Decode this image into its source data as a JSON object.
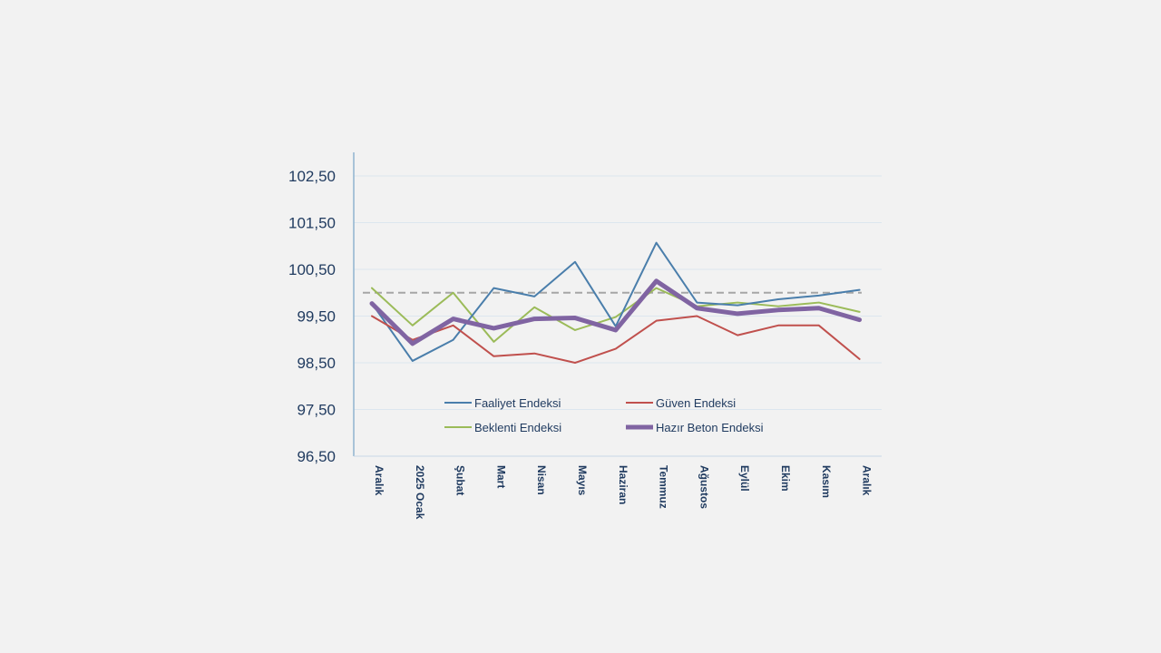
{
  "chart_data": {
    "type": "line",
    "title": "",
    "xlabel": "",
    "ylabel": "",
    "ylim": [
      96.5,
      102.5
    ],
    "yticks": [
      "96,50",
      "97,50",
      "98,50",
      "99,50",
      "100,50",
      "101,50",
      "102,50"
    ],
    "ytick_values": [
      96.5,
      97.5,
      98.5,
      99.5,
      100.5,
      101.5,
      102.5
    ],
    "categories": [
      "Aralık",
      "2025 Ocak",
      "Şubat",
      "Mart",
      "Nisan",
      "Mayıs",
      "Haziran",
      "Temmuz",
      "Ağustos",
      "Eylül",
      "Ekim",
      "Kasım",
      "Aralık"
    ],
    "grid": true,
    "legend_position": "bottom-inside",
    "reference_line": {
      "value": 100,
      "style": "dashed",
      "color": "#a6a6a6"
    },
    "series": [
      {
        "name": "Faaliyet Endeksi",
        "color": "#4a7eab",
        "width": 2,
        "values": [
          99.77,
          98.54,
          98.99,
          100.1,
          99.92,
          100.66,
          99.28,
          101.07,
          99.79,
          99.73,
          99.86,
          99.94,
          100.06
        ]
      },
      {
        "name": "Güven Endeksi",
        "color": "#c0504d",
        "width": 2,
        "values": [
          99.5,
          98.99,
          99.3,
          98.64,
          98.7,
          98.5,
          98.8,
          99.4,
          99.5,
          99.09,
          99.3,
          99.3,
          98.58
        ]
      },
      {
        "name": "Beklenti Endeksi",
        "color": "#9bbb59",
        "width": 2,
        "values": [
          100.1,
          99.3,
          100.0,
          98.95,
          99.69,
          99.2,
          99.48,
          100.1,
          99.71,
          99.79,
          99.71,
          99.79,
          99.59
        ]
      },
      {
        "name": "Hazır Beton Endeksi",
        "color": "#8064a2",
        "width": 5,
        "values": [
          99.77,
          98.91,
          99.44,
          99.24,
          99.44,
          99.46,
          99.2,
          100.25,
          99.67,
          99.55,
          99.63,
          99.67,
          99.42
        ]
      }
    ]
  }
}
